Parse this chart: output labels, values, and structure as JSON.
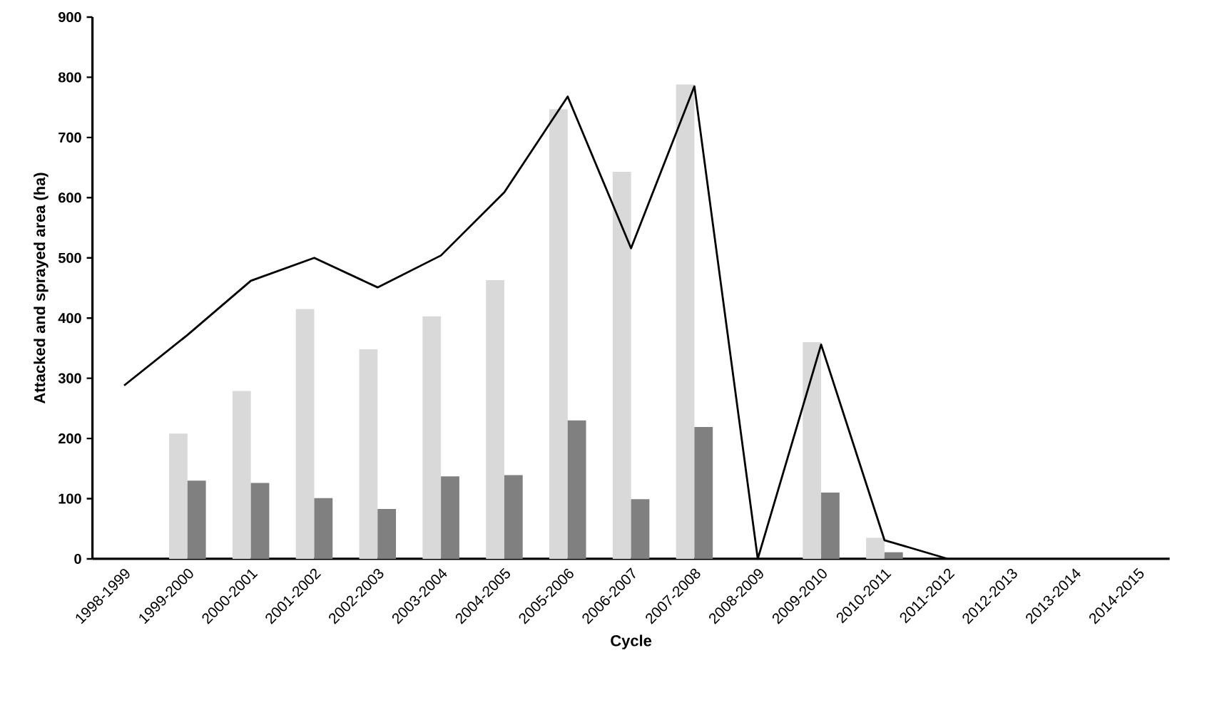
{
  "chart_data": {
    "type": "bar",
    "xlabel": "Cycle",
    "ylabel": "Attacked and sprayed area (ha)",
    "categories": [
      "1998-1999",
      "1999-2000",
      "2000-2001",
      "2001-2002",
      "2002-2003",
      "2003-2004",
      "2004-2005",
      "2005-2006",
      "2006-2007",
      "2007-2008",
      "2008-2009",
      "2009-2010",
      "2010-2011",
      "2011-2012",
      "2012-2013",
      "2013-2014",
      "2014-2015"
    ],
    "series": [
      {
        "color": "#d9d9d9",
        "values": [
          null,
          208,
          279,
          415,
          348,
          403,
          463,
          747,
          643,
          788,
          null,
          360,
          35,
          null,
          null,
          null,
          null
        ]
      },
      {
        "color": "#808080",
        "values": [
          null,
          130,
          126,
          101,
          83,
          137,
          139,
          230,
          99,
          219,
          null,
          110,
          11,
          null,
          null,
          null,
          null
        ]
      },
      {
        "type": "line",
        "color": "#000000",
        "values": [
          288,
          372,
          462,
          500,
          451,
          504,
          609,
          768,
          516,
          785,
          0,
          356,
          31,
          0,
          null,
          null,
          null
        ]
      }
    ],
    "ylim": [
      0,
      900
    ],
    "yticks": [
      0,
      100,
      200,
      300,
      400,
      500,
      600,
      700,
      800,
      900
    ],
    "grid": false
  }
}
